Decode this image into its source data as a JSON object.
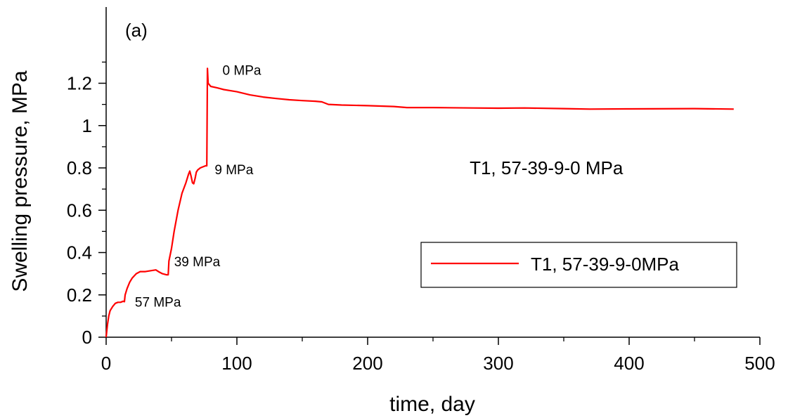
{
  "chart_data": {
    "type": "line",
    "panel_label": "(a)",
    "xlabel": "time, day",
    "ylabel": "Swelling pressure, MPa",
    "xlim": [
      0,
      500
    ],
    "ylim": [
      0,
      1.3
    ],
    "x_ticks": [
      0,
      100,
      200,
      300,
      400,
      500
    ],
    "x_tick_labels": [
      "0",
      "100",
      "200",
      "300",
      "400",
      "500"
    ],
    "y_ticks": [
      0,
      0.2,
      0.4,
      0.6,
      0.8,
      1.0,
      1.2
    ],
    "y_tick_labels": [
      "0",
      "0.2",
      "0.4",
      "0.6",
      "0.8",
      "1",
      "1.2"
    ],
    "grid": false,
    "legend_position": "lower-right",
    "annotations": [
      {
        "text": "57 MPa",
        "x": 22,
        "y": 0.145
      },
      {
        "text": "39 MPa",
        "x": 52,
        "y": 0.335
      },
      {
        "text": "9 MPa",
        "x": 83,
        "y": 0.77
      },
      {
        "text": "0 MPa",
        "x": 89,
        "y": 1.24
      },
      {
        "text": "T1, 57-39-9-0 MPa",
        "x": 278,
        "y": 0.77
      }
    ],
    "series": [
      {
        "name": "T1, 57-39-9-0MPa",
        "color": "#ff0000",
        "points": [
          [
            0,
            0
          ],
          [
            0.5,
            0.03
          ],
          [
            1,
            0.06
          ],
          [
            2,
            0.1
          ],
          [
            3,
            0.125
          ],
          [
            5,
            0.145
          ],
          [
            7,
            0.16
          ],
          [
            9,
            0.165
          ],
          [
            11,
            0.165
          ],
          [
            13,
            0.17
          ],
          [
            14,
            0.168
          ],
          [
            14.5,
            0.2
          ],
          [
            16,
            0.23
          ],
          [
            18,
            0.26
          ],
          [
            20,
            0.28
          ],
          [
            23,
            0.3
          ],
          [
            26,
            0.31
          ],
          [
            30,
            0.31
          ],
          [
            35,
            0.315
          ],
          [
            38,
            0.318
          ],
          [
            40,
            0.31
          ],
          [
            43,
            0.3
          ],
          [
            46,
            0.295
          ],
          [
            47.5,
            0.295
          ],
          [
            48,
            0.36
          ],
          [
            50,
            0.42
          ],
          [
            52,
            0.5
          ],
          [
            55,
            0.6
          ],
          [
            58,
            0.68
          ],
          [
            61,
            0.73
          ],
          [
            63,
            0.77
          ],
          [
            64,
            0.785
          ],
          [
            65,
            0.76
          ],
          [
            66,
            0.73
          ],
          [
            67,
            0.725
          ],
          [
            68,
            0.75
          ],
          [
            69,
            0.78
          ],
          [
            70,
            0.79
          ],
          [
            72,
            0.8
          ],
          [
            74,
            0.805
          ],
          [
            76,
            0.81
          ],
          [
            77,
            0.81
          ],
          [
            77.5,
            1.27
          ],
          [
            78,
            1.2
          ],
          [
            80,
            1.185
          ],
          [
            85,
            1.178
          ],
          [
            90,
            1.17
          ],
          [
            100,
            1.16
          ],
          [
            110,
            1.145
          ],
          [
            120,
            1.135
          ],
          [
            130,
            1.128
          ],
          [
            140,
            1.122
          ],
          [
            150,
            1.118
          ],
          [
            160,
            1.115
          ],
          [
            165,
            1.112
          ],
          [
            170,
            1.1
          ],
          [
            180,
            1.097
          ],
          [
            200,
            1.094
          ],
          [
            220,
            1.09
          ],
          [
            230,
            1.085
          ],
          [
            250,
            1.085
          ],
          [
            280,
            1.083
          ],
          [
            300,
            1.082
          ],
          [
            320,
            1.083
          ],
          [
            350,
            1.08
          ],
          [
            370,
            1.078
          ],
          [
            400,
            1.079
          ],
          [
            450,
            1.08
          ],
          [
            480,
            1.078
          ]
        ]
      }
    ]
  }
}
